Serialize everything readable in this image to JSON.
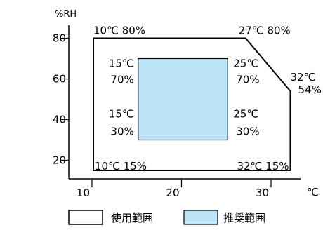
{
  "chart_data": {
    "type": "area",
    "xlabel": "℃",
    "ylabel": "%RH",
    "xlim": [
      10,
      33
    ],
    "ylim": [
      19,
      83
    ],
    "x_ticks": [
      "10",
      "20",
      "30"
    ],
    "y_ticks": [
      "80",
      "60",
      "40",
      "20"
    ],
    "usage_range": {
      "name": "使用範囲",
      "points": [
        [
          10,
          80
        ],
        [
          27,
          80
        ],
        [
          32,
          54
        ],
        [
          32,
          15
        ],
        [
          10,
          15
        ]
      ],
      "labels": [
        {
          "text": "10℃  80%",
          "x": 10,
          "y": 80
        },
        {
          "text": "27℃  80%",
          "x": 27,
          "y": 80
        },
        {
          "text": "32℃",
          "x": 32,
          "y": 54
        },
        {
          "text": "54%",
          "x": 32,
          "y": 54
        },
        {
          "text": "10℃  15%",
          "x": 10,
          "y": 15
        },
        {
          "text": "32℃  15%",
          "x": 32,
          "y": 15
        }
      ]
    },
    "recommended_range": {
      "name": "推奨範囲",
      "color": "#bde5f8",
      "points": [
        [
          15,
          70
        ],
        [
          25,
          70
        ],
        [
          25,
          30
        ],
        [
          15,
          30
        ]
      ],
      "labels": [
        {
          "text": "15℃",
          "x": 15,
          "y": 70
        },
        {
          "text": "70%",
          "x": 15,
          "y": 70
        },
        {
          "text": "25℃",
          "x": 25,
          "y": 70
        },
        {
          "text": "70%",
          "x": 25,
          "y": 70
        },
        {
          "text": "15℃",
          "x": 15,
          "y": 30
        },
        {
          "text": "30%",
          "x": 15,
          "y": 30
        },
        {
          "text": "25℃",
          "x": 25,
          "y": 30
        },
        {
          "text": "30%",
          "x": 25,
          "y": 30
        }
      ]
    }
  },
  "legend": [
    {
      "label": "使用範囲",
      "fill": "#ffffff"
    },
    {
      "label": "推奨範囲",
      "fill": "#bde5f8"
    }
  ]
}
